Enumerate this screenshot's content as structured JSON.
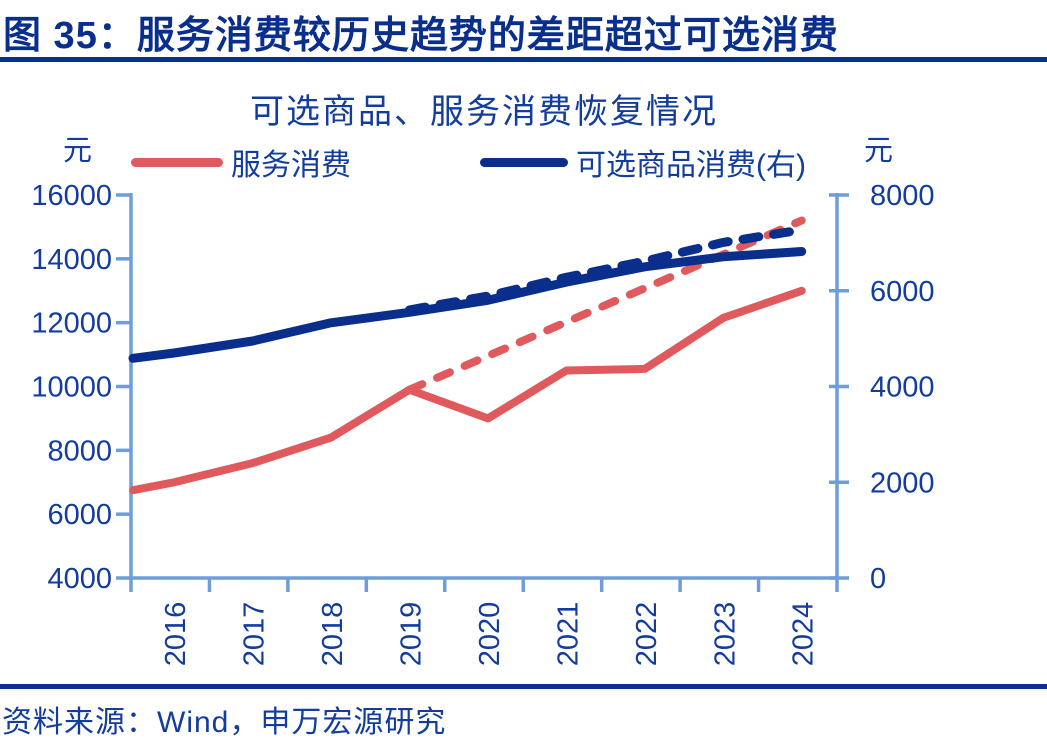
{
  "colors": {
    "navy": "#0A2E8C",
    "text_blue": "#123C9D",
    "red": "#E0595D",
    "axis_blue": "#6E9DD9"
  },
  "header": {
    "title": "图 35：服务消费较历史趋势的差距超过可选消费"
  },
  "chart": {
    "title": "可选商品、服务消费恢复情况",
    "unit_left": "元",
    "unit_right": "元",
    "legend": [
      {
        "label": "服务消费",
        "color": "#E0595D"
      },
      {
        "label": "可选商品消费(右)",
        "color": "#0A2E8C"
      }
    ]
  },
  "chart_data": {
    "type": "line",
    "title": "可选商品、服务消费恢复情况",
    "categories": [
      2016,
      2017,
      2018,
      2019,
      2020,
      2021,
      2022,
      2023,
      2024
    ],
    "left_axis": {
      "unit": "元",
      "min": 4000,
      "max": 16000,
      "tick_step": 2000,
      "tick_labels": [
        "16000",
        "14000",
        "12000",
        "10000",
        "8000",
        "6000",
        "4000"
      ]
    },
    "right_axis": {
      "unit": "元",
      "min": 0,
      "max": 8000,
      "tick_step": 2000,
      "tick_labels": [
        "8000",
        "6000",
        "4000",
        "2000",
        "0"
      ]
    },
    "grid": false,
    "legend_position": "top",
    "series": [
      {
        "name": "服务消费",
        "axis": "left",
        "style": "solid",
        "color": "#E0595D",
        "x": [
          2016,
          2017,
          2018,
          2019,
          2020,
          2021,
          2022,
          2023,
          2024
        ],
        "values": [
          7000,
          7600,
          8400,
          9900,
          9000,
          10500,
          10550,
          12150,
          13000
        ],
        "axis_start_value": 6750
      },
      {
        "name": "服务消费趋势(虚线)",
        "axis": "left",
        "style": "dashed",
        "color": "#E0595D",
        "x": [
          2019,
          2020,
          2021,
          2022,
          2023,
          2024
        ],
        "values": [
          9900,
          10960,
          12020,
          13080,
          14140,
          15200
        ]
      },
      {
        "name": "可选商品消费(右)",
        "axis": "right",
        "style": "solid",
        "color": "#0A2E8C",
        "x": [
          2016,
          2017,
          2018,
          2019,
          2020,
          2021,
          2022,
          2023,
          2024
        ],
        "values": [
          4700,
          4950,
          5330,
          5550,
          5800,
          6180,
          6500,
          6710,
          6820
        ],
        "axis_start_value": 4590
      },
      {
        "name": "可选商品消费趋势(虚线,右)",
        "axis": "right",
        "style": "dashed",
        "color": "#0A2E8C",
        "x": [
          2019,
          2020,
          2021,
          2022,
          2023,
          2024
        ],
        "values": [
          5600,
          5890,
          6280,
          6620,
          7010,
          7270
        ]
      }
    ]
  },
  "source": {
    "text": "资料来源：Wind，申万宏源研究"
  }
}
